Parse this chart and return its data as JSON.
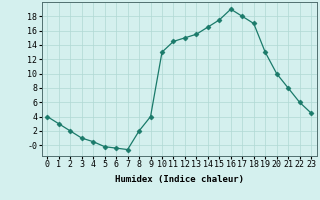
{
  "x": [
    0,
    1,
    2,
    3,
    4,
    5,
    6,
    7,
    8,
    9,
    10,
    11,
    12,
    13,
    14,
    15,
    16,
    17,
    18,
    19,
    20,
    21,
    22,
    23
  ],
  "y": [
    4,
    3,
    2,
    1,
    0.5,
    -0.2,
    -0.4,
    -0.6,
    2,
    4,
    13,
    14.5,
    15,
    15.5,
    16.5,
    17.5,
    19,
    18,
    17,
    13,
    10,
    8,
    6,
    4.5
  ],
  "line_color": "#1a7a6a",
  "marker": "D",
  "marker_size": 2.5,
  "bg_color": "#d4f0ee",
  "grid_color": "#b0d8d4",
  "xlabel": "Humidex (Indice chaleur)",
  "ylim": [
    -1.5,
    20
  ],
  "xlim": [
    -0.5,
    23.5
  ],
  "yticks": [
    0,
    2,
    4,
    6,
    8,
    10,
    12,
    14,
    16,
    18
  ],
  "ytick_labels": [
    "-0",
    "2",
    "4",
    "6",
    "8",
    "10",
    "12",
    "14",
    "16",
    "18"
  ],
  "xtick_labels": [
    "0",
    "1",
    "2",
    "3",
    "4",
    "5",
    "6",
    "7",
    "8",
    "9",
    "10",
    "11",
    "12",
    "13",
    "14",
    "15",
    "16",
    "17",
    "18",
    "19",
    "20",
    "21",
    "22",
    "23"
  ],
  "xlabel_fontsize": 6.5,
  "tick_fontsize": 6
}
